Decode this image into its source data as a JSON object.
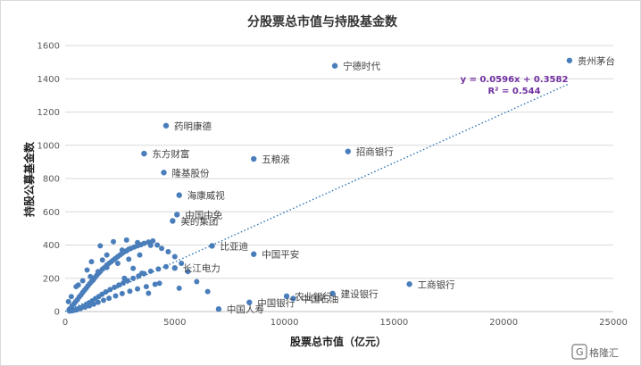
{
  "chart_data": {
    "type": "scatter",
    "title": "分股票总市值与持股基金数",
    "xlabel": "股票总市值（亿元）",
    "ylabel": "持股公募基金数",
    "xlim": [
      0,
      25000
    ],
    "ylim": [
      0,
      1600
    ],
    "xticks": [
      0,
      5000,
      10000,
      15000,
      20000,
      25000
    ],
    "yticks": [
      0,
      200,
      400,
      600,
      800,
      1000,
      1200,
      1400,
      1600
    ],
    "grid": "horizontal",
    "point_color": "#4a7ebb",
    "trendline": {
      "type": "linear",
      "slope": 0.0596,
      "intercept": 0.3582,
      "equation": "y = 0.0596x + 0.3582",
      "r2": "R² = 0.544",
      "color": "#2e75b6",
      "x_range": [
        0,
        23000
      ]
    },
    "labeled_points": [
      {
        "label": "贵州茅台",
        "x": 23000,
        "y": 1510
      },
      {
        "label": "宁德时代",
        "x": 12300,
        "y": 1478
      },
      {
        "label": "药明康德",
        "x": 4600,
        "y": 1118
      },
      {
        "label": "招商银行",
        "x": 12900,
        "y": 963
      },
      {
        "label": "东方财富",
        "x": 3600,
        "y": 950
      },
      {
        "label": "五粮液",
        "x": 8600,
        "y": 918
      },
      {
        "label": "隆基股份",
        "x": 4500,
        "y": 836
      },
      {
        "label": "海康威视",
        "x": 5200,
        "y": 700
      },
      {
        "label": "中国中免",
        "x": 5100,
        "y": 583
      },
      {
        "label": "美的集团",
        "x": 4900,
        "y": 545
      },
      {
        "label": "比亚迪",
        "x": 6700,
        "y": 395
      },
      {
        "label": "中国平安",
        "x": 8600,
        "y": 345
      },
      {
        "label": "长江电力",
        "x": 5000,
        "y": 262
      },
      {
        "label": "工商银行",
        "x": 15700,
        "y": 165
      },
      {
        "label": "建设银行",
        "x": 12200,
        "y": 108
      },
      {
        "label": "农业银行",
        "x": 10100,
        "y": 92
      },
      {
        "label": "中国石油",
        "x": 10400,
        "y": 78
      },
      {
        "label": "中国银行",
        "x": 8400,
        "y": 55
      },
      {
        "label": "中国人寿",
        "x": 7000,
        "y": 15
      }
    ],
    "cluster_points_x": [
      180,
      250,
      320,
      410,
      480,
      560,
      640,
      720,
      800,
      880,
      960,
      1040,
      1120,
      1200,
      1280,
      1360,
      1440,
      1520,
      1600,
      1700,
      1800,
      1900,
      2000,
      2100,
      2200,
      2300,
      2400,
      2500,
      2600,
      2700,
      2800,
      2900,
      3000,
      3150,
      3300,
      3450,
      3600,
      3800,
      4000,
      4200,
      4400,
      4700,
      5000,
      5300,
      5600,
      6000,
      6500,
      300,
      420,
      550,
      680,
      820,
      950,
      1080,
      1230,
      1380,
      1530,
      1680,
      1850,
      2050,
      2250,
      2450,
      2650,
      2850,
      3100,
      3350,
      3600,
      3900,
      4250,
      4600,
      200,
      350,
      520,
      700,
      900,
      1100,
      1300,
      1500,
      1750,
      2000,
      2300,
      2600,
      2950,
      3300,
      3700,
      4100,
      500,
      800,
      1150,
      1500,
      1900,
      2400,
      2900,
      3400,
      1600,
      2200,
      2800,
      3300,
      3900,
      1200,
      1900,
      2600,
      3100,
      3500,
      4300,
      5200,
      150,
      280,
      600,
      1000,
      1700,
      2700,
      3800
    ],
    "cluster_points_y": [
      12,
      20,
      35,
      48,
      60,
      72,
      88,
      100,
      115,
      128,
      140,
      155,
      168,
      180,
      190,
      205,
      218,
      230,
      240,
      255,
      265,
      280,
      290,
      300,
      310,
      320,
      330,
      340,
      350,
      360,
      365,
      375,
      380,
      388,
      395,
      402,
      410,
      418,
      425,
      400,
      380,
      360,
      330,
      290,
      240,
      180,
      120,
      5,
      8,
      14,
      22,
      30,
      40,
      52,
      64,
      78,
      90,
      104,
      118,
      132,
      146,
      160,
      172,
      186,
      200,
      214,
      228,
      242,
      256,
      270,
      3,
      6,
      10,
      18,
      26,
      34,
      44,
      56,
      68,
      80,
      94,
      108,
      122,
      136,
      150,
      164,
      150,
      185,
      210,
      240,
      265,
      290,
      315,
      340,
      395,
      420,
      430,
      415,
      398,
      300,
      340,
      370,
      260,
      230,
      170,
      140,
      60,
      90,
      160,
      250,
      310,
      200,
      110
    ]
  }
}
